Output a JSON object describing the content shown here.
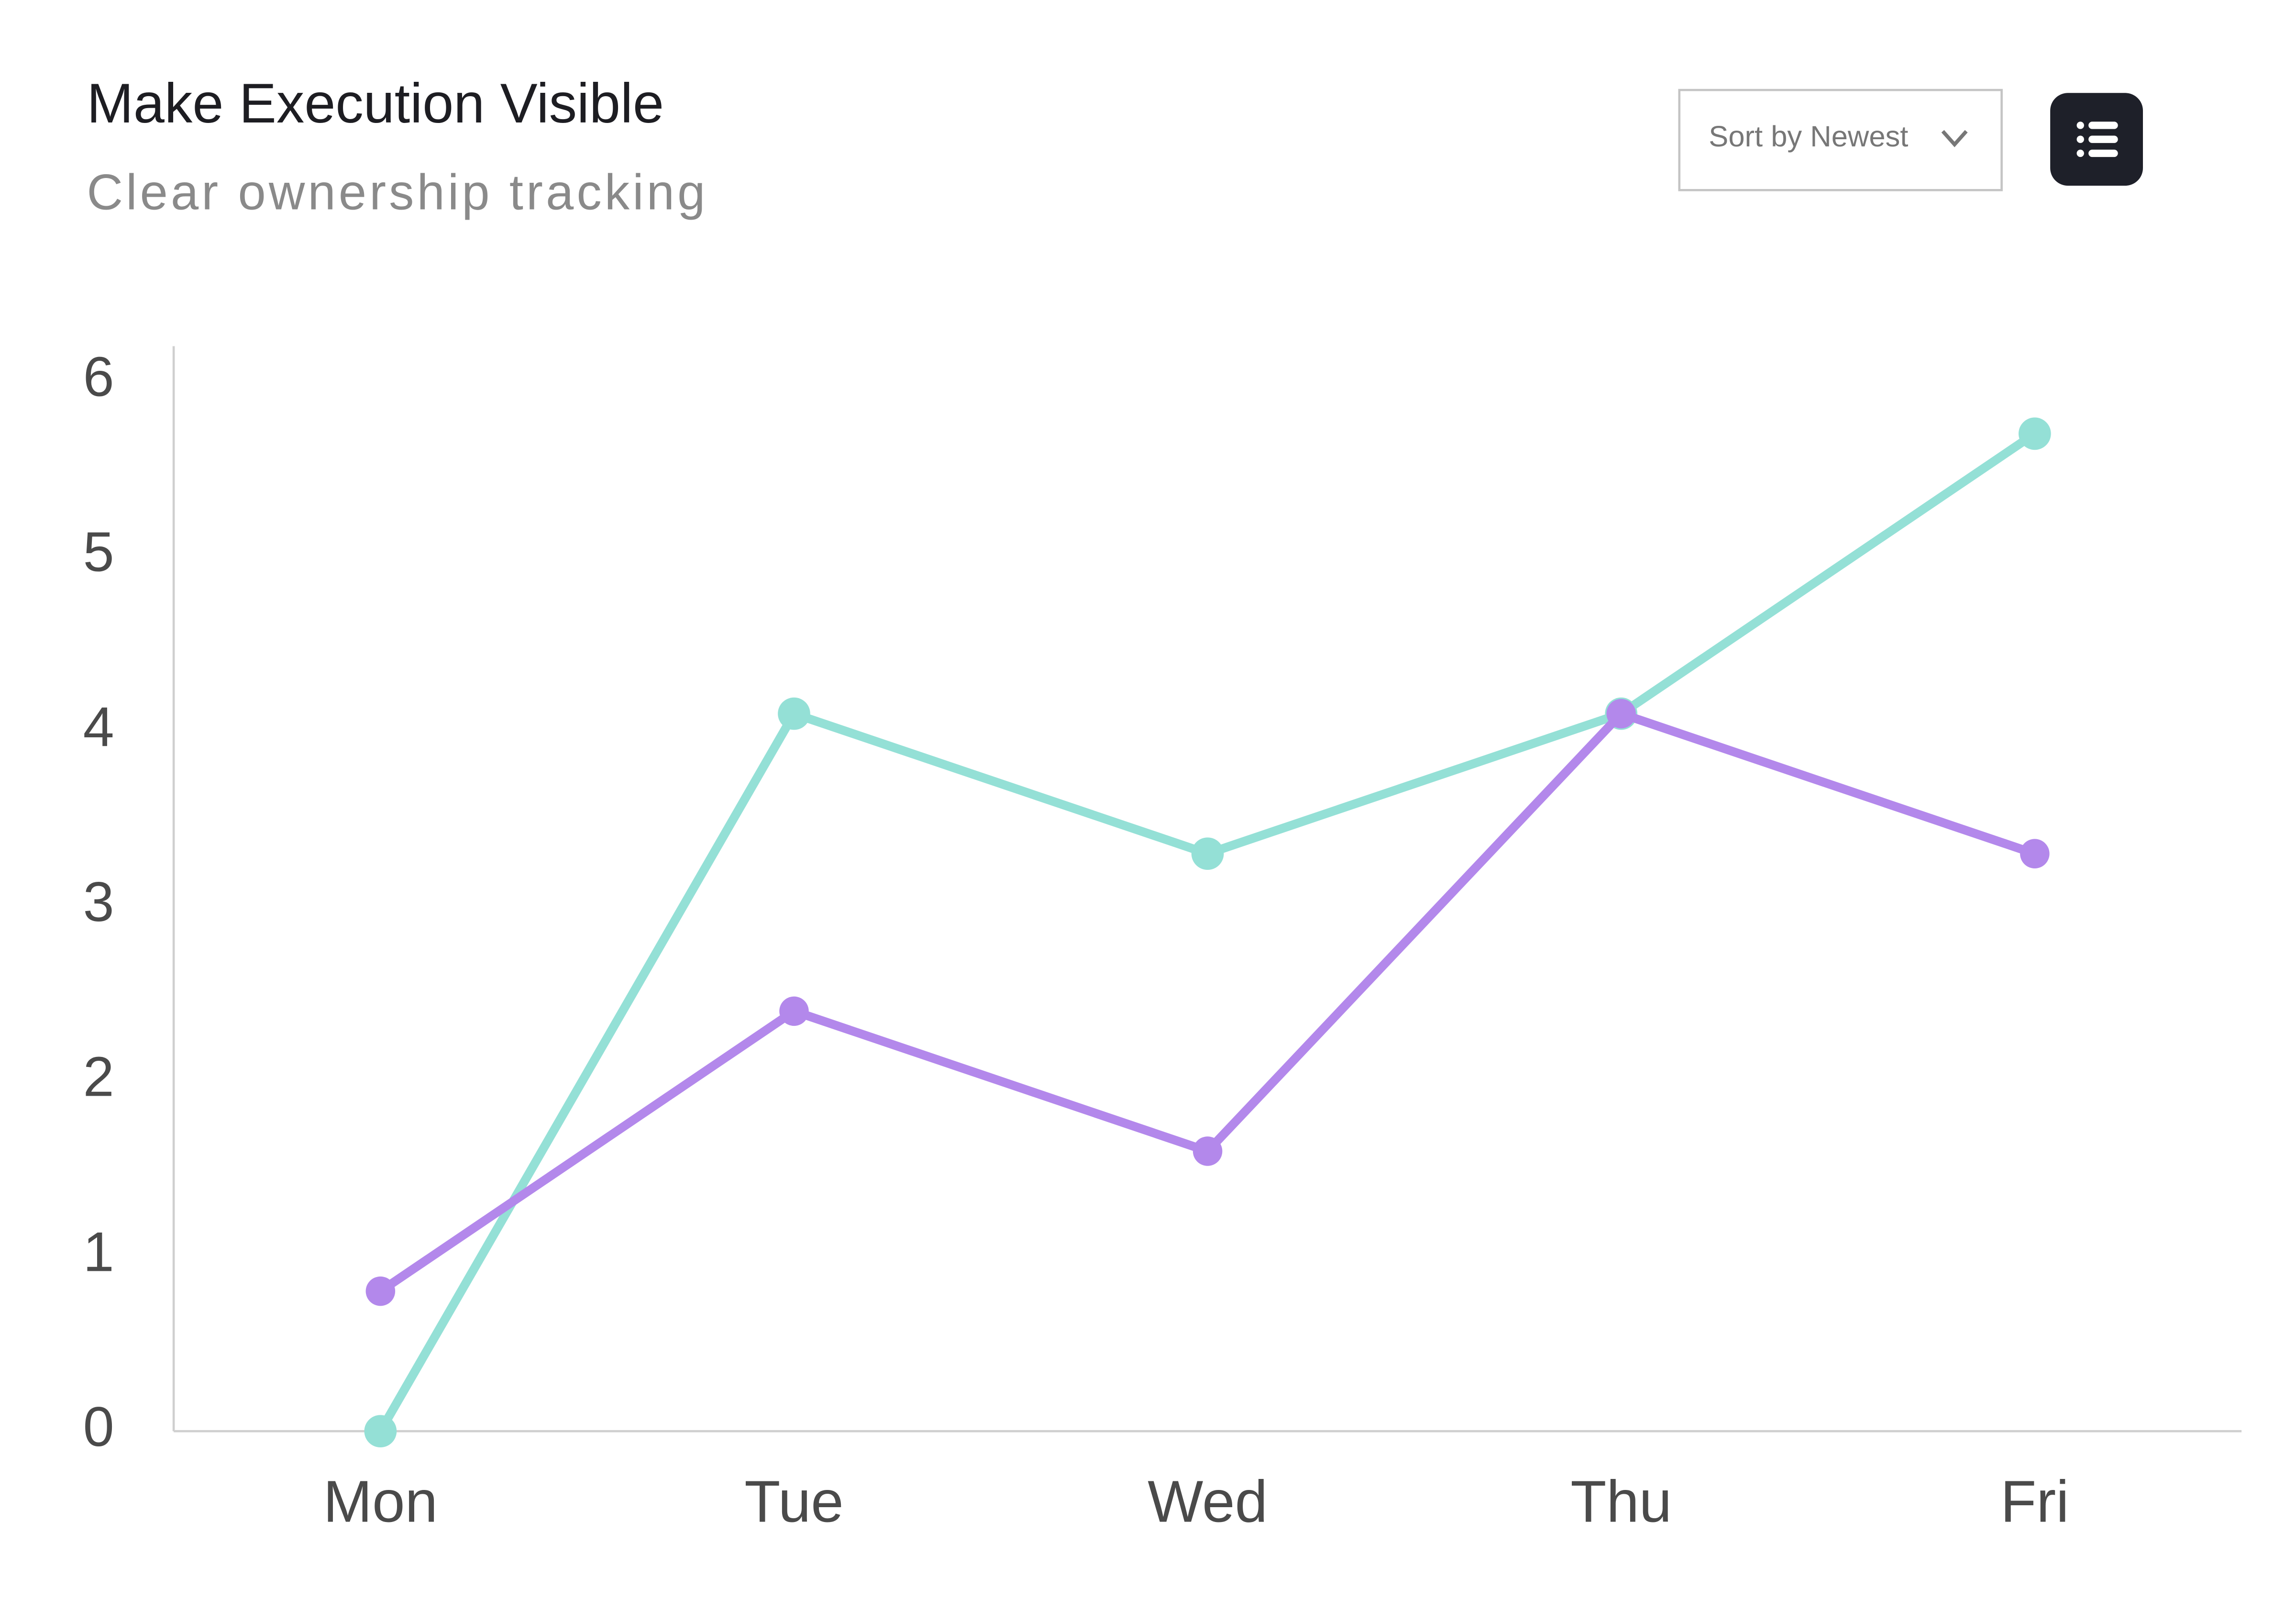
{
  "chart_data": {
    "type": "line",
    "title": "Make Execution Visible",
    "subtitle": "Clear ownership tracking",
    "categories": [
      "Mon",
      "Tue",
      "Wed",
      "Thu",
      "Fri"
    ],
    "series": [
      {
        "color": "#94e0d6",
        "values": [
          0,
          4.1,
          3.3,
          4.1,
          5.7
        ]
      },
      {
        "color": "#b388eb",
        "values": [
          0.8,
          2.4,
          1.6,
          4.1,
          3.3
        ]
      }
    ],
    "ylim": [
      0,
      6.2
    ],
    "yticks": [
      0,
      1,
      2,
      3,
      4,
      5,
      6
    ],
    "grid": false
  },
  "controls": {
    "sort_label": "Sort by Newest"
  }
}
